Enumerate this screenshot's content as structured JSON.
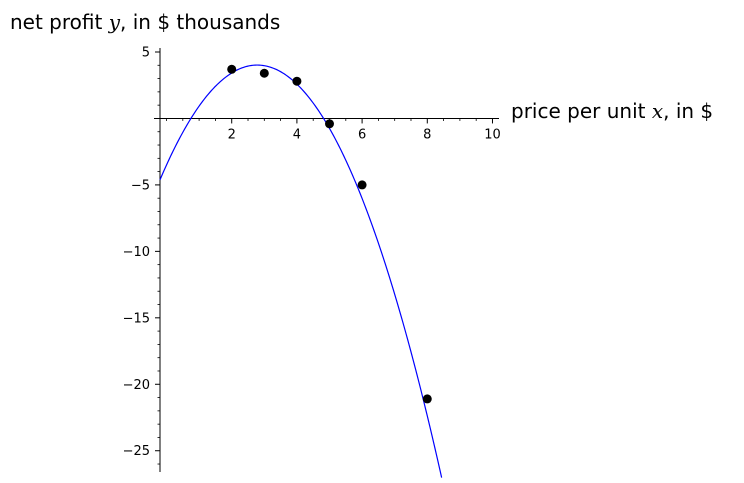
{
  "chart_data": {
    "type": "scatter",
    "y_axis_label": {
      "prefix": "net profit ",
      "variable": "y",
      "suffix": ", in $ thousands"
    },
    "x_axis_label": {
      "prefix": "price per unit ",
      "variable": "x",
      "suffix": ", in $"
    },
    "xlim": [
      -0.2,
      10.2
    ],
    "ylim": [
      -26.6,
      5.3
    ],
    "x_ticks": [
      2,
      4,
      6,
      8,
      10
    ],
    "y_ticks": [
      5,
      -5,
      -10,
      -15,
      -20,
      -25
    ],
    "x_minor_step": 0.5,
    "y_minor_step": 1,
    "grid": false,
    "points": [
      {
        "x": 2,
        "y": 3.7
      },
      {
        "x": 3,
        "y": 3.4
      },
      {
        "x": 4,
        "y": 2.8
      },
      {
        "x": 5,
        "y": -0.4
      },
      {
        "x": 6,
        "y": -5
      },
      {
        "x": 8,
        "y": -21.1
      }
    ],
    "fit_curve": {
      "type": "quadratic",
      "a": -0.97,
      "b": 5.4,
      "c": -3.5,
      "x_range": [
        -0.2,
        8.6
      ],
      "color": "#0000ff"
    },
    "point_color": "#000000"
  }
}
